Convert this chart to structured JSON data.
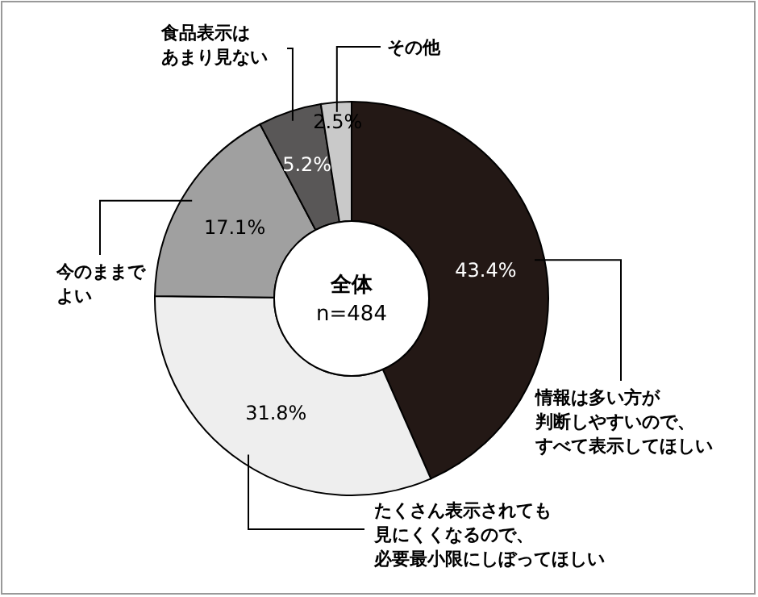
{
  "chart_data": {
    "type": "donut",
    "categories": [
      "情報は多い方が判断しやすいので、すべて表示してほしい",
      "たくさん表示されても見にくくなるので、必要最小限にしぼってほしい",
      "今のままでよい",
      "食品表示はあまり見ない",
      "その他"
    ],
    "values": [
      43.4,
      31.8,
      17.1,
      5.2,
      2.5
    ],
    "colors": [
      "#231815",
      "#eeeeee",
      "#a0a0a0",
      "#595757",
      "#c9c9c9"
    ],
    "value_labels": [
      "43.4%",
      "31.8%",
      "17.1%",
      "5.2%",
      "2.5%"
    ],
    "annotations": [
      "全体",
      "n=484"
    ]
  }
}
